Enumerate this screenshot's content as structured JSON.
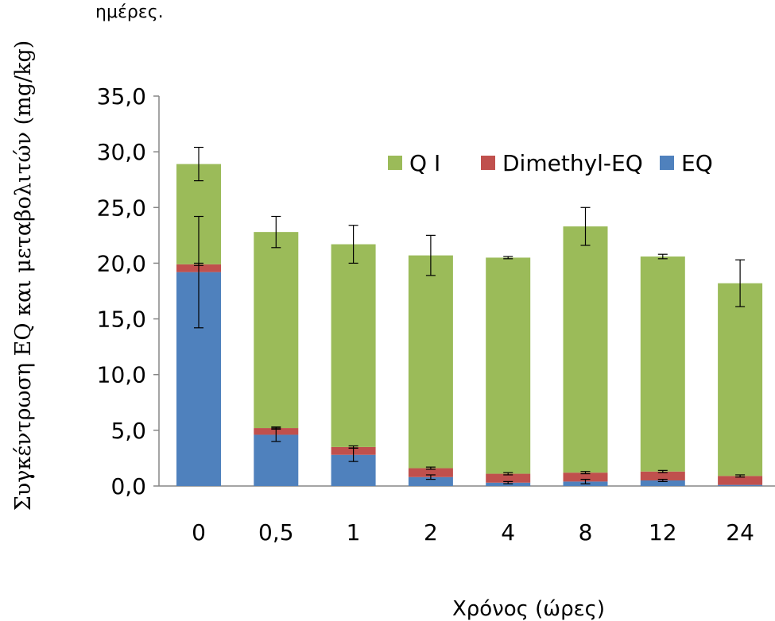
{
  "caption_fragment": "ημέρες.",
  "chart_data": {
    "type": "bar",
    "stacked": true,
    "title": "",
    "xlabel": "Χρόνος (ώρες)",
    "ylabel": "Συγκέντρωση  EQ και μεταβολιτών (mg/kg)",
    "categories": [
      "0",
      "0,5",
      "1",
      "2",
      "4",
      "8",
      "12",
      "24"
    ],
    "ylim": [
      0,
      35
    ],
    "yticks": [
      "0,0",
      "5,0",
      "10,0",
      "15,0",
      "20,0",
      "25,0",
      "30,0",
      "35,0"
    ],
    "grid": false,
    "legend_position": "top-right",
    "series": [
      {
        "name": "EQ",
        "color": "#4F81BD",
        "values": [
          19.2,
          4.6,
          2.8,
          0.8,
          0.3,
          0.4,
          0.5,
          0.1
        ],
        "error": [
          5.0,
          0.6,
          0.6,
          0.2,
          0.1,
          0.2,
          0.1,
          0.0
        ]
      },
      {
        "name": "Dimethyl-EQ",
        "color": "#C0504D",
        "values": [
          0.7,
          0.6,
          0.7,
          0.8,
          0.8,
          0.8,
          0.8,
          0.8
        ],
        "error": [
          0.1,
          0.1,
          0.1,
          0.1,
          0.1,
          0.1,
          0.1,
          0.1
        ]
      },
      {
        "name": "Q I",
        "color": "#9BBB59",
        "values": [
          9.0,
          17.6,
          18.2,
          19.1,
          19.4,
          22.1,
          19.3,
          17.3
        ],
        "error": [
          1.5,
          1.4,
          1.7,
          1.8,
          0.1,
          1.7,
          0.2,
          2.1
        ]
      }
    ],
    "legend_order": [
      "Q I",
      "Dimethyl-EQ",
      "EQ"
    ]
  }
}
